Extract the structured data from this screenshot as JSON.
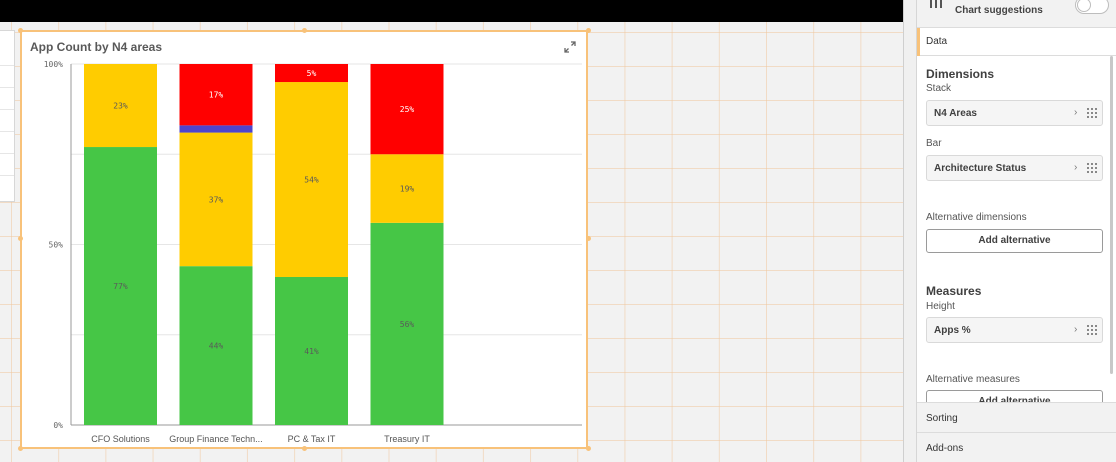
{
  "chart": {
    "title": "App Count by N4 areas",
    "icon": "expand-icon"
  },
  "chart_data": {
    "type": "bar",
    "stacked": "percent",
    "categories": [
      "CFO Solutions",
      "Group Finance Techn...",
      "PC & Tax IT",
      "Treasury IT"
    ],
    "yticks": [
      "0%",
      "50%",
      "100%"
    ],
    "ylim": [
      0,
      100
    ],
    "grid": true,
    "segments": [
      [
        {
          "value": 77,
          "color": "#46c646",
          "label": "77%"
        },
        {
          "value": 23,
          "color": "#ffcc00",
          "label": "23%"
        }
      ],
      [
        {
          "value": 44,
          "color": "#46c646",
          "label": "44%"
        },
        {
          "value": 37,
          "color": "#ffcc00",
          "label": "37%"
        },
        {
          "value": 2,
          "color": "#4e44cc",
          "label": ""
        },
        {
          "value": 17,
          "color": "#ff0000",
          "label": "17%"
        }
      ],
      [
        {
          "value": 41,
          "color": "#46c646",
          "label": "41%"
        },
        {
          "value": 54,
          "color": "#ffcc00",
          "label": "54%"
        },
        {
          "value": 5,
          "color": "#ff0000",
          "label": "5%"
        }
      ],
      [
        {
          "value": 56,
          "color": "#46c646",
          "label": "56%"
        },
        {
          "value": 19,
          "color": "#ffcc00",
          "label": "19%"
        },
        {
          "value": 25,
          "color": "#ff0000",
          "label": "25%"
        }
      ]
    ]
  },
  "props": {
    "chart_suggestions": "Chart suggestions",
    "tab_data": "Data",
    "dimensions_title": "Dimensions",
    "stack_label": "Stack",
    "stack_field": "N4 Areas",
    "bar_label": "Bar",
    "bar_field": "Architecture Status",
    "alt_dimensions_label": "Alternative dimensions",
    "add_alternative": "Add alternative",
    "measures_title": "Measures",
    "height_label": "Height",
    "height_field": "Apps %",
    "alt_measures_label": "Alternative measures",
    "add_alternative_2": "Add alternative",
    "sorting": "Sorting",
    "addons": "Add-ons"
  }
}
